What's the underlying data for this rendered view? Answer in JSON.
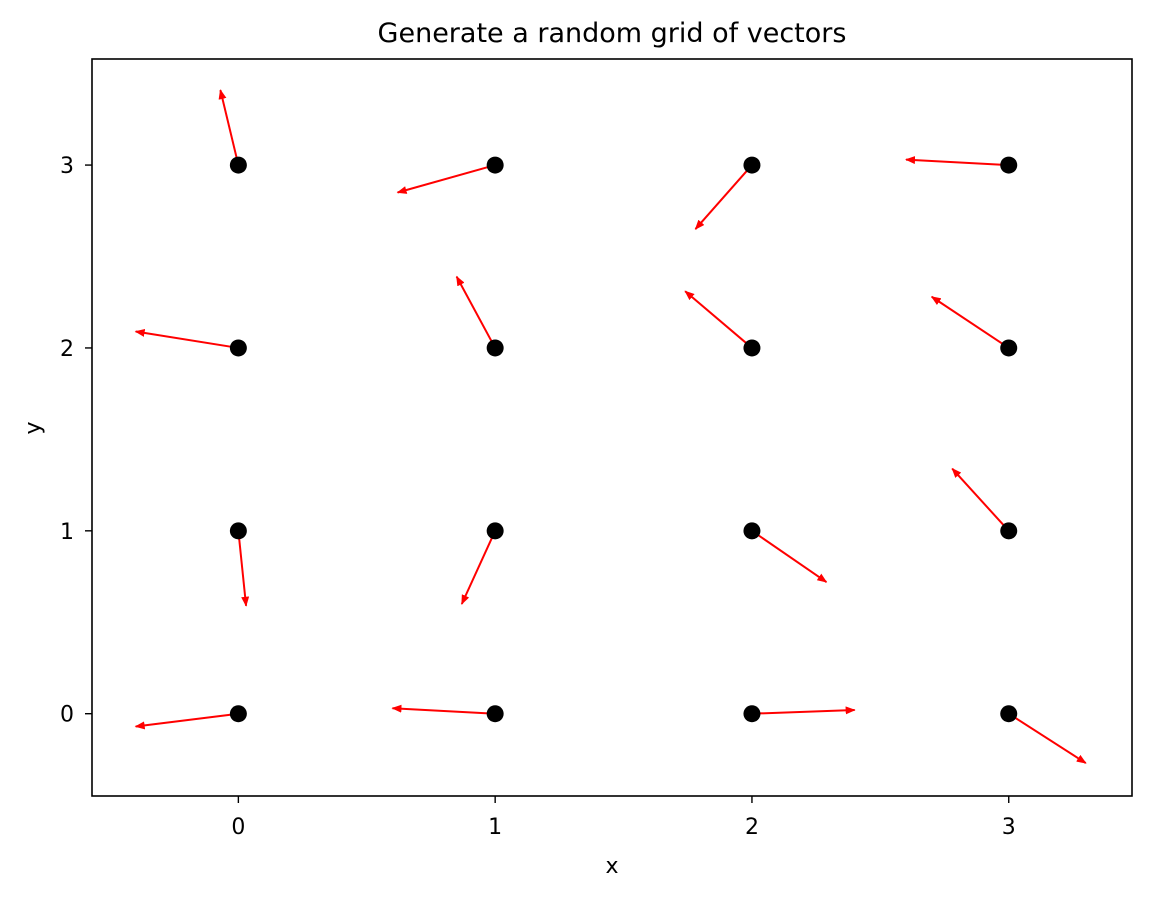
{
  "chart_data": {
    "type": "quiver",
    "title": "Generate a random grid of vectors",
    "xlabel": "x",
    "ylabel": "y",
    "xlim": [
      -0.57,
      3.48
    ],
    "ylim": [
      -0.45,
      3.58
    ],
    "xticks": [
      0,
      1,
      2,
      3
    ],
    "yticks": [
      0,
      1,
      2,
      3
    ],
    "grid": false,
    "point_color": "#000000",
    "arrow_color": "#ff0000",
    "points": [
      {
        "x": 0,
        "y": 0,
        "u": -0.4,
        "v": -0.07
      },
      {
        "x": 1,
        "y": 0,
        "u": -0.4,
        "v": 0.03
      },
      {
        "x": 2,
        "y": 0,
        "u": 0.4,
        "v": 0.02
      },
      {
        "x": 3,
        "y": 0,
        "u": 0.3,
        "v": -0.27
      },
      {
        "x": 0,
        "y": 1,
        "u": 0.03,
        "v": -0.41
      },
      {
        "x": 1,
        "y": 1,
        "u": -0.13,
        "v": -0.4
      },
      {
        "x": 2,
        "y": 1,
        "u": 0.29,
        "v": -0.28
      },
      {
        "x": 3,
        "y": 1,
        "u": -0.22,
        "v": 0.34
      },
      {
        "x": 0,
        "y": 2,
        "u": -0.4,
        "v": 0.09
      },
      {
        "x": 1,
        "y": 2,
        "u": -0.15,
        "v": 0.39
      },
      {
        "x": 2,
        "y": 2,
        "u": -0.26,
        "v": 0.31
      },
      {
        "x": 3,
        "y": 2,
        "u": -0.3,
        "v": 0.28
      },
      {
        "x": 0,
        "y": 3,
        "u": -0.07,
        "v": 0.41
      },
      {
        "x": 1,
        "y": 3,
        "u": -0.38,
        "v": -0.15
      },
      {
        "x": 2,
        "y": 3,
        "u": -0.22,
        "v": -0.35
      },
      {
        "x": 3,
        "y": 3,
        "u": -0.4,
        "v": 0.03
      }
    ]
  }
}
